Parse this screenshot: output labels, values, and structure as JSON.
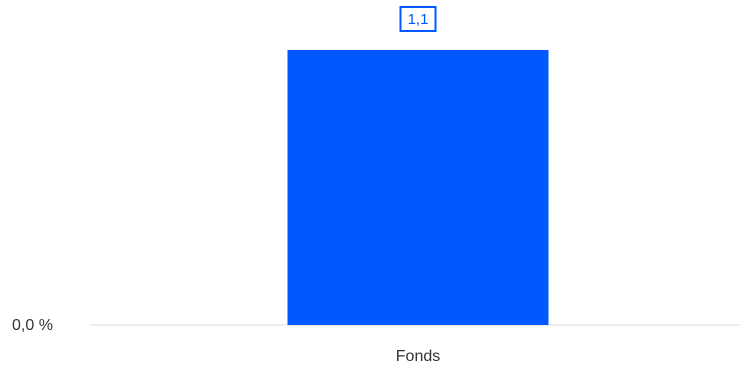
{
  "chart_data": {
    "type": "bar",
    "categories": [
      "Fonds"
    ],
    "series": [
      {
        "values": [
          1.1
        ],
        "data_labels": [
          "1,1"
        ],
        "color": "#0059ff"
      }
    ],
    "y_ticks": [
      {
        "value": 0,
        "label": "0,0 %"
      }
    ],
    "ylim": [
      0,
      1.1
    ],
    "grid": false,
    "baseline_color": "#dddddd",
    "label_color": "#333333"
  }
}
